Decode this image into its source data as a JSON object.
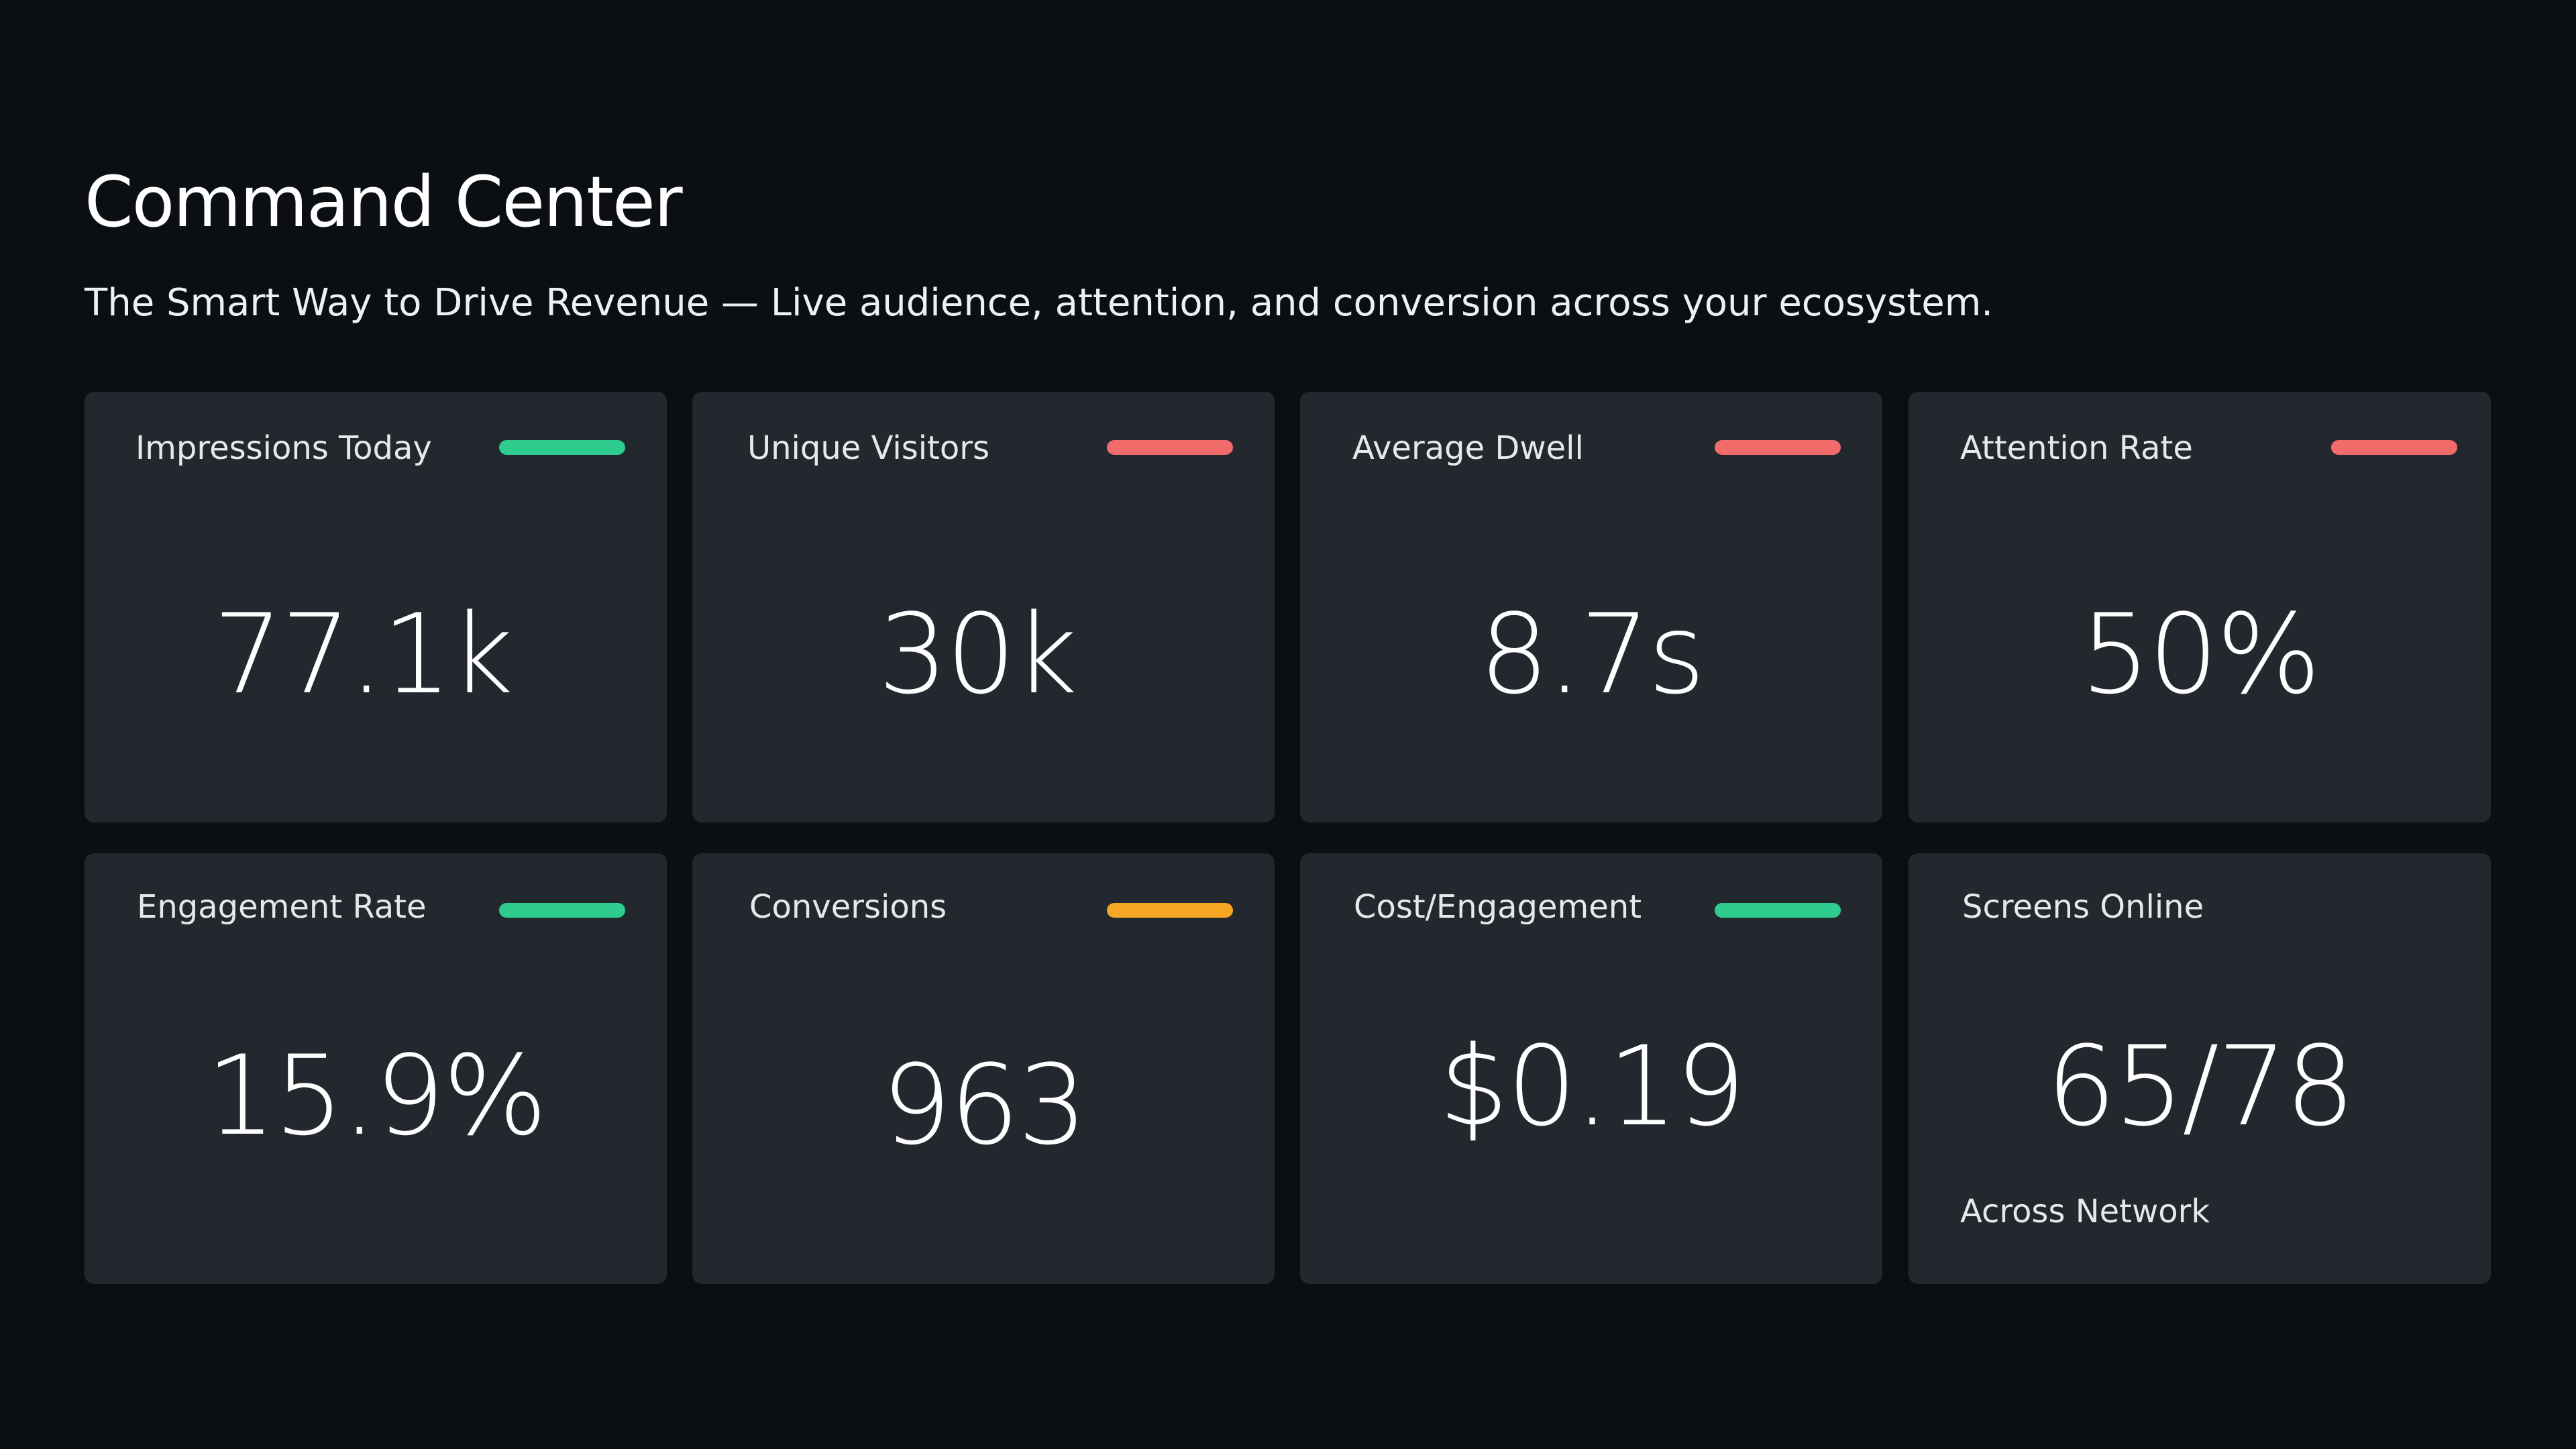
{
  "header": {
    "title": "Command Center",
    "subtitle": "The Smart Way to Drive Revenue — Live audience, attention, and conversion across your ecosystem."
  },
  "colors": {
    "background": "#0b0f14",
    "card": "#23282e",
    "trend_up": "#2ecc8f",
    "trend_down": "#f26b6b",
    "trend_neutral": "#f5a623"
  },
  "metrics": [
    {
      "label": "Impressions Today",
      "value": "77.1k",
      "trend": "up",
      "trend_color": "#2ecc8f"
    },
    {
      "label": "Unique Visitors",
      "value": "30k",
      "trend": "down",
      "trend_color": "#f26b6b"
    },
    {
      "label": "Average Dwell",
      "value": "8.7s",
      "trend": "down",
      "trend_color": "#f26b6b"
    },
    {
      "label": "Attention Rate",
      "value": "50%",
      "trend": "down",
      "trend_color": "#f26b6b"
    },
    {
      "label": "Engagement Rate",
      "value": "15.9%",
      "trend": "up",
      "trend_color": "#2ecc8f"
    },
    {
      "label": "Conversions",
      "value": "963",
      "trend": "neutral",
      "trend_color": "#f5a623"
    },
    {
      "label": "Cost/Engagement",
      "value": "$0.19",
      "trend": "up",
      "trend_color": "#2ecc8f"
    },
    {
      "label": "Screens Online",
      "value": "65/78",
      "sublabel": "Across Network"
    }
  ]
}
